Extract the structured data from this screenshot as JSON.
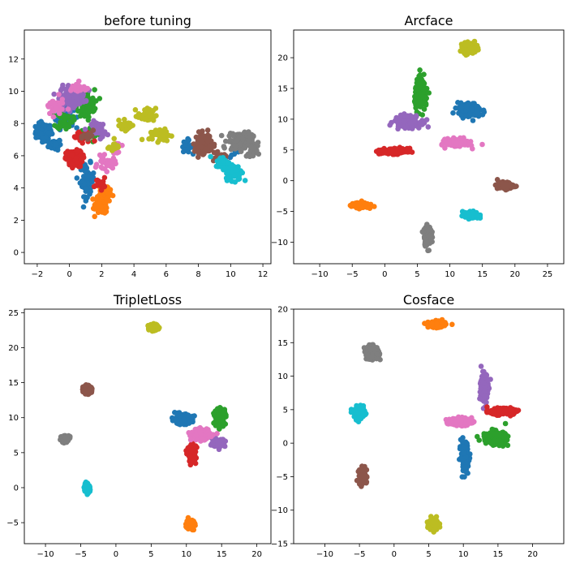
{
  "chart_data": [
    {
      "type": "scatter",
      "title": "before tuning",
      "xlim": [
        -2.8,
        12.5
      ],
      "ylim": [
        -0.7,
        13.8
      ],
      "xticks": [
        -2,
        0,
        2,
        4,
        6,
        8,
        10,
        12
      ],
      "yticks": [
        0,
        2,
        4,
        6,
        8,
        10,
        12
      ],
      "series": [
        {
          "color": "#1f77b4",
          "clusters": [
            {
              "x": -1.6,
              "y": 7.5,
              "sx": 0.45,
              "sy": 0.45,
              "n": 120
            },
            {
              "x": -0.9,
              "y": 6.7,
              "sx": 0.35,
              "sy": 0.3,
              "n": 60
            },
            {
              "x": -0.3,
              "y": 8.5,
              "sx": 0.5,
              "sy": 0.7,
              "n": 60
            },
            {
              "x": 1.1,
              "y": 4.5,
              "sx": 0.4,
              "sy": 0.9,
              "n": 60
            },
            {
              "x": 7.3,
              "y": 6.6,
              "sx": 0.3,
              "sy": 0.35,
              "n": 20
            },
            {
              "x": 10.3,
              "y": 6.3,
              "sx": 0.3,
              "sy": 0.4,
              "n": 15
            }
          ]
        },
        {
          "color": "#ff7f0e",
          "clusters": [
            {
              "x": 2.0,
              "y": 3.0,
              "sx": 0.35,
              "sy": 0.55,
              "n": 160
            },
            {
              "x": 2.3,
              "y": 3.8,
              "sx": 0.3,
              "sy": 0.3,
              "n": 40
            }
          ]
        },
        {
          "color": "#2ca02c",
          "clusters": [
            {
              "x": 1.0,
              "y": 9.2,
              "sx": 0.5,
              "sy": 0.8,
              "n": 110
            },
            {
              "x": 1.5,
              "y": 7.5,
              "sx": 0.45,
              "sy": 0.4,
              "n": 50
            },
            {
              "x": -0.3,
              "y": 8.2,
              "sx": 0.45,
              "sy": 0.5,
              "n": 40
            }
          ]
        },
        {
          "color": "#d62728",
          "clusters": [
            {
              "x": 0.3,
              "y": 5.8,
              "sx": 0.45,
              "sy": 0.45,
              "n": 140
            },
            {
              "x": 0.8,
              "y": 7.1,
              "sx": 0.6,
              "sy": 0.35,
              "n": 30
            },
            {
              "x": 1.9,
              "y": 4.3,
              "sx": 0.3,
              "sy": 0.3,
              "n": 20
            }
          ]
        },
        {
          "color": "#9467bd",
          "clusters": [
            {
              "x": 0.2,
              "y": 9.7,
              "sx": 0.7,
              "sy": 0.55,
              "n": 130
            },
            {
              "x": 1.8,
              "y": 7.6,
              "sx": 0.4,
              "sy": 0.5,
              "n": 40
            }
          ]
        },
        {
          "color": "#8c564b",
          "clusters": [
            {
              "x": 8.3,
              "y": 6.8,
              "sx": 0.45,
              "sy": 0.55,
              "n": 150
            },
            {
              "x": 9.3,
              "y": 5.8,
              "sx": 0.5,
              "sy": 0.3,
              "n": 25
            },
            {
              "x": 1.2,
              "y": 7.2,
              "sx": 0.3,
              "sy": 0.3,
              "n": 15
            }
          ]
        },
        {
          "color": "#e377c2",
          "clusters": [
            {
              "x": -0.9,
              "y": 9.0,
              "sx": 0.5,
              "sy": 0.5,
              "n": 40
            },
            {
              "x": 0.5,
              "y": 10.2,
              "sx": 0.5,
              "sy": 0.3,
              "n": 30
            },
            {
              "x": 2.3,
              "y": 5.5,
              "sx": 0.5,
              "sy": 0.4,
              "n": 30
            },
            {
              "x": 2.9,
              "y": 6.5,
              "sx": 0.3,
              "sy": 0.3,
              "n": 10
            }
          ]
        },
        {
          "color": "#7f7f7f",
          "clusters": [
            {
              "x": 10.6,
              "y": 6.9,
              "sx": 0.7,
              "sy": 0.5,
              "n": 140
            },
            {
              "x": 11.3,
              "y": 6.2,
              "sx": 0.3,
              "sy": 0.4,
              "n": 20
            }
          ]
        },
        {
          "color": "#bcbd22",
          "clusters": [
            {
              "x": 4.8,
              "y": 8.5,
              "sx": 0.5,
              "sy": 0.4,
              "n": 40
            },
            {
              "x": 3.6,
              "y": 7.9,
              "sx": 0.4,
              "sy": 0.3,
              "n": 30
            },
            {
              "x": 5.6,
              "y": 7.3,
              "sx": 0.6,
              "sy": 0.35,
              "n": 40
            },
            {
              "x": 2.7,
              "y": 6.6,
              "sx": 0.3,
              "sy": 0.4,
              "n": 15
            }
          ]
        },
        {
          "color": "#17becf",
          "clusters": [
            {
              "x": 10.2,
              "y": 5.0,
              "sx": 0.45,
              "sy": 0.45,
              "n": 120
            },
            {
              "x": 9.5,
              "y": 5.6,
              "sx": 0.4,
              "sy": 0.3,
              "n": 40
            }
          ]
        }
      ]
    },
    {
      "type": "scatter",
      "title": "Arcface",
      "xlim": [
        -14,
        27.5
      ],
      "ylim": [
        -13.5,
        24.5
      ],
      "xticks": [
        -10,
        -5,
        0,
        5,
        10,
        15,
        20,
        25
      ],
      "yticks": [
        -10,
        -5,
        0,
        5,
        10,
        15,
        20
      ],
      "series": [
        {
          "color": "#bcbd22",
          "clusters": [
            {
              "x": 13,
              "y": 21.6,
              "sx": 0.9,
              "sy": 0.7,
              "n": 180
            }
          ]
        },
        {
          "color": "#8c564b",
          "clusters": [
            {
              "x": 18.5,
              "y": -0.8,
              "sx": 1.1,
              "sy": 0.5,
              "n": 150
            }
          ]
        },
        {
          "color": "#ff7f0e",
          "clusters": [
            {
              "x": -3.8,
              "y": -4.0,
              "sx": 1.2,
              "sy": 0.35,
              "n": 150
            }
          ]
        },
        {
          "color": "#17becf",
          "clusters": [
            {
              "x": 13.2,
              "y": -5.6,
              "sx": 1.1,
              "sy": 0.5,
              "n": 120
            }
          ]
        },
        {
          "color": "#7f7f7f",
          "clusters": [
            {
              "x": 6.6,
              "y": -9.0,
              "sx": 0.5,
              "sy": 1.4,
              "n": 140
            }
          ]
        },
        {
          "color": "#1f77b4",
          "clusters": [
            {
              "x": 13,
              "y": 11.5,
              "sx": 1.6,
              "sy": 1.0,
              "n": 160
            }
          ]
        },
        {
          "color": "#2ca02c",
          "clusters": [
            {
              "x": 5.6,
              "y": 14.0,
              "sx": 0.9,
              "sy": 2.2,
              "n": 160
            }
          ]
        },
        {
          "color": "#9467bd",
          "clusters": [
            {
              "x": 3.5,
              "y": 9.6,
              "sx": 1.8,
              "sy": 0.9,
              "n": 160
            }
          ]
        },
        {
          "color": "#d62728",
          "clusters": [
            {
              "x": 1.5,
              "y": 4.8,
              "sx": 1.8,
              "sy": 0.4,
              "n": 160
            }
          ]
        },
        {
          "color": "#e377c2",
          "clusters": [
            {
              "x": 11.2,
              "y": 6.2,
              "sx": 1.6,
              "sy": 0.6,
              "n": 150
            }
          ]
        }
      ]
    },
    {
      "type": "scatter",
      "title": "TripletLoss",
      "xlim": [
        -13,
        22
      ],
      "ylim": [
        -8,
        25.5
      ],
      "xticks": [
        -10,
        -5,
        0,
        5,
        10,
        15,
        20
      ],
      "yticks": [
        -5,
        0,
        5,
        10,
        15,
        20,
        25
      ],
      "series": [
        {
          "color": "#bcbd22",
          "clusters": [
            {
              "x": 5.3,
              "y": 22.9,
              "sx": 0.6,
              "sy": 0.35,
              "n": 150
            }
          ]
        },
        {
          "color": "#8c564b",
          "clusters": [
            {
              "x": -4.1,
              "y": 14.0,
              "sx": 0.5,
              "sy": 0.5,
              "n": 150
            }
          ]
        },
        {
          "color": "#7f7f7f",
          "clusters": [
            {
              "x": -7.2,
              "y": 7.0,
              "sx": 0.5,
              "sy": 0.4,
              "n": 120
            }
          ]
        },
        {
          "color": "#17becf",
          "clusters": [
            {
              "x": -4.1,
              "y": 0.0,
              "sx": 0.35,
              "sy": 0.6,
              "n": 120
            }
          ]
        },
        {
          "color": "#ff7f0e",
          "clusters": [
            {
              "x": 10.6,
              "y": -5.3,
              "sx": 0.5,
              "sy": 0.6,
              "n": 130
            }
          ]
        },
        {
          "color": "#1f77b4",
          "clusters": [
            {
              "x": 9.4,
              "y": 9.8,
              "sx": 1.3,
              "sy": 0.6,
              "n": 150
            }
          ]
        },
        {
          "color": "#2ca02c",
          "clusters": [
            {
              "x": 14.8,
              "y": 10.2,
              "sx": 0.7,
              "sy": 1.0,
              "n": 150
            }
          ]
        },
        {
          "color": "#9467bd",
          "clusters": [
            {
              "x": 14.6,
              "y": 6.4,
              "sx": 0.8,
              "sy": 0.5,
              "n": 130
            }
          ]
        },
        {
          "color": "#d62728",
          "clusters": [
            {
              "x": 10.8,
              "y": 4.8,
              "sx": 0.5,
              "sy": 1.0,
              "n": 140
            }
          ]
        },
        {
          "color": "#e377c2",
          "clusters": [
            {
              "x": 12.0,
              "y": 7.6,
              "sx": 1.2,
              "sy": 0.7,
              "n": 140
            }
          ]
        }
      ]
    },
    {
      "type": "scatter",
      "title": "Cosface",
      "xlim": [
        -14.5,
        24.5
      ],
      "ylim": [
        -15,
        20
      ],
      "xticks": [
        -10,
        -5,
        0,
        5,
        10,
        15,
        20
      ],
      "yticks": [
        -15,
        -10,
        -5,
        0,
        5,
        10,
        15,
        20
      ],
      "series": [
        {
          "color": "#ff7f0e",
          "clusters": [
            {
              "x": 6.2,
              "y": 17.7,
              "sx": 1.1,
              "sy": 0.4,
              "n": 150
            }
          ]
        },
        {
          "color": "#7f7f7f",
          "clusters": [
            {
              "x": -3.2,
              "y": 13.5,
              "sx": 0.9,
              "sy": 0.9,
              "n": 150
            }
          ]
        },
        {
          "color": "#17becf",
          "clusters": [
            {
              "x": -5.0,
              "y": 4.5,
              "sx": 0.7,
              "sy": 0.8,
              "n": 150
            }
          ]
        },
        {
          "color": "#8c564b",
          "clusters": [
            {
              "x": -4.5,
              "y": -5.0,
              "sx": 0.5,
              "sy": 1.1,
              "n": 130
            }
          ]
        },
        {
          "color": "#bcbd22",
          "clusters": [
            {
              "x": 5.7,
              "y": -12.0,
              "sx": 0.6,
              "sy": 0.8,
              "n": 150
            }
          ]
        },
        {
          "color": "#9467bd",
          "clusters": [
            {
              "x": 13.0,
              "y": 8.2,
              "sx": 0.5,
              "sy": 2.0,
              "n": 160
            }
          ]
        },
        {
          "color": "#d62728",
          "clusters": [
            {
              "x": 15.5,
              "y": 4.7,
              "sx": 1.6,
              "sy": 0.4,
              "n": 160
            }
          ]
        },
        {
          "color": "#2ca02c",
          "clusters": [
            {
              "x": 14.5,
              "y": 0.8,
              "sx": 1.5,
              "sy": 0.9,
              "n": 150
            }
          ]
        },
        {
          "color": "#1f77b4",
          "clusters": [
            {
              "x": 10.2,
              "y": -2.0,
              "sx": 0.5,
              "sy": 2.0,
              "n": 160
            }
          ]
        },
        {
          "color": "#e377c2",
          "clusters": [
            {
              "x": 9.5,
              "y": 3.2,
              "sx": 1.5,
              "sy": 0.5,
              "n": 150
            }
          ]
        }
      ]
    }
  ]
}
